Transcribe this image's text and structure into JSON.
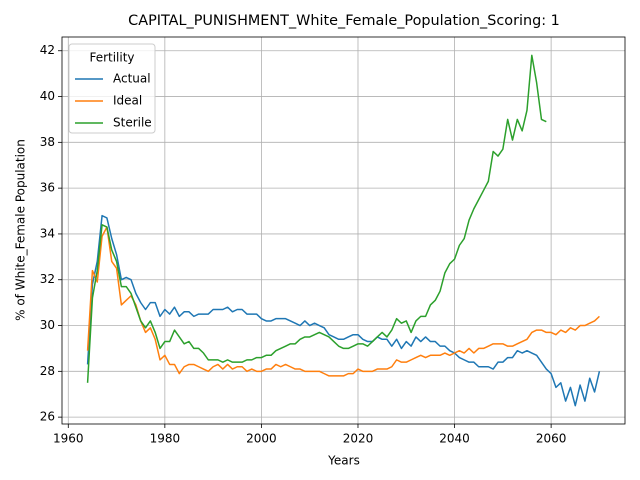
{
  "chart_data": {
    "type": "line",
    "title": "CAPITAL_PUNISHMENT_White_Female_Population_Scoring: 1",
    "x_label": "Years",
    "y_label": "% of White_Female Population",
    "legend_title": "Fertility",
    "legend_position": "upper left",
    "grid": true,
    "xlim": [
      1958.7,
      2075.3
    ],
    "ylim": [
      25.7,
      42.6
    ],
    "xticks": [
      1960,
      1980,
      2000,
      2020,
      2040,
      2060
    ],
    "yticks": [
      26,
      28,
      30,
      32,
      34,
      36,
      38,
      40,
      42
    ],
    "x": [
      1964,
      1965,
      1966,
      1967,
      1968,
      1969,
      1970,
      1971,
      1972,
      1973,
      1974,
      1975,
      1976,
      1977,
      1978,
      1979,
      1980,
      1981,
      1982,
      1983,
      1984,
      1985,
      1986,
      1987,
      1988,
      1989,
      1990,
      1991,
      1992,
      1993,
      1994,
      1995,
      1996,
      1997,
      1998,
      1999,
      2000,
      2001,
      2002,
      2003,
      2004,
      2005,
      2006,
      2007,
      2008,
      2009,
      2010,
      2011,
      2012,
      2013,
      2014,
      2015,
      2016,
      2017,
      2018,
      2019,
      2020,
      2021,
      2022,
      2023,
      2024,
      2025,
      2026,
      2027,
      2028,
      2029,
      2030,
      2031,
      2032,
      2033,
      2034,
      2035,
      2036,
      2037,
      2038,
      2039,
      2040,
      2041,
      2042,
      2043,
      2044,
      2045,
      2046,
      2047,
      2048,
      2049,
      2050,
      2051,
      2052,
      2053,
      2054,
      2055,
      2056,
      2057,
      2058,
      2059,
      2060,
      2061,
      2062,
      2063,
      2064,
      2065,
      2066,
      2067,
      2068,
      2069,
      2070
    ],
    "series": [
      {
        "name": "Actual",
        "color": "#1f77b4",
        "values": [
          28.3,
          31.8,
          32.8,
          34.8,
          34.7,
          33.8,
          33.1,
          32.0,
          32.1,
          32.0,
          31.4,
          31.0,
          30.7,
          31.0,
          31.0,
          30.4,
          30.7,
          30.5,
          30.8,
          30.4,
          30.6,
          30.6,
          30.4,
          30.5,
          30.5,
          30.5,
          30.7,
          30.7,
          30.7,
          30.8,
          30.6,
          30.7,
          30.7,
          30.5,
          30.5,
          30.5,
          30.3,
          30.2,
          30.2,
          30.3,
          30.3,
          30.3,
          30.2,
          30.1,
          30.0,
          30.2,
          30.0,
          30.1,
          30.0,
          29.9,
          29.6,
          29.5,
          29.4,
          29.4,
          29.5,
          29.6,
          29.6,
          29.4,
          29.3,
          29.3,
          29.5,
          29.4,
          29.4,
          29.1,
          29.4,
          29.0,
          29.3,
          29.1,
          29.5,
          29.3,
          29.5,
          29.3,
          29.3,
          29.1,
          29.1,
          28.9,
          28.8,
          28.6,
          28.5,
          28.4,
          28.4,
          28.2,
          28.2,
          28.2,
          28.1,
          28.4,
          28.4,
          28.6,
          28.6,
          28.9,
          28.8,
          28.9,
          28.8,
          28.7,
          28.4,
          28.1,
          27.9,
          27.3,
          27.5,
          26.7,
          27.3,
          26.5,
          27.4,
          26.7,
          27.7,
          27.1,
          28.0
        ]
      },
      {
        "name": "Ideal",
        "color": "#ff7f0e",
        "values": [
          28.9,
          32.4,
          31.9,
          33.9,
          34.3,
          32.8,
          32.5,
          30.9,
          31.1,
          31.3,
          30.9,
          30.2,
          29.7,
          29.9,
          29.4,
          28.5,
          28.7,
          28.3,
          28.3,
          27.9,
          28.2,
          28.3,
          28.3,
          28.2,
          28.1,
          28.0,
          28.2,
          28.3,
          28.1,
          28.3,
          28.1,
          28.2,
          28.2,
          28.0,
          28.1,
          28.0,
          28.0,
          28.1,
          28.1,
          28.3,
          28.2,
          28.3,
          28.2,
          28.1,
          28.1,
          28.0,
          28.0,
          28.0,
          28.0,
          27.9,
          27.8,
          27.8,
          27.8,
          27.8,
          27.9,
          27.9,
          28.1,
          28.0,
          28.0,
          28.0,
          28.1,
          28.1,
          28.1,
          28.2,
          28.5,
          28.4,
          28.4,
          28.5,
          28.6,
          28.7,
          28.6,
          28.7,
          28.7,
          28.7,
          28.8,
          28.7,
          28.8,
          28.9,
          28.8,
          29.0,
          28.8,
          29.0,
          29.0,
          29.1,
          29.2,
          29.2,
          29.2,
          29.1,
          29.1,
          29.2,
          29.3,
          29.4,
          29.7,
          29.8,
          29.8,
          29.7,
          29.7,
          29.6,
          29.8,
          29.7,
          29.9,
          29.8,
          30.0,
          30.0,
          30.1,
          30.2,
          30.4
        ]
      },
      {
        "name": "Sterile",
        "color": "#2ca02c",
        "values": [
          27.5,
          31.2,
          32.4,
          34.4,
          34.3,
          33.3,
          32.8,
          31.7,
          31.7,
          31.4,
          30.8,
          30.2,
          29.9,
          30.2,
          29.7,
          29.0,
          29.3,
          29.3,
          29.8,
          29.5,
          29.2,
          29.3,
          29.0,
          29.0,
          28.8,
          28.5,
          28.5,
          28.5,
          28.4,
          28.5,
          28.4,
          28.4,
          28.4,
          28.5,
          28.5,
          28.6,
          28.6,
          28.7,
          28.7,
          28.9,
          29.0,
          29.1,
          29.2,
          29.2,
          29.4,
          29.5,
          29.5,
          29.6,
          29.7,
          29.6,
          29.5,
          29.3,
          29.1,
          29.0,
          29.0,
          29.1,
          29.2,
          29.2,
          29.1,
          29.3,
          29.5,
          29.7,
          29.5,
          29.8,
          30.3,
          30.1,
          30.2,
          29.7,
          30.2,
          30.4,
          30.4,
          30.9,
          31.1,
          31.5,
          32.3,
          32.7,
          32.9,
          33.5,
          33.8,
          34.6,
          35.1,
          35.5,
          35.9,
          36.3,
          37.6,
          37.4,
          37.7,
          39.0,
          38.1,
          39.0,
          38.5,
          39.4,
          41.8,
          40.6,
          39.0,
          38.9,
          null,
          null,
          null,
          null,
          null,
          null,
          null,
          null,
          null,
          null,
          null
        ]
      }
    ]
  }
}
